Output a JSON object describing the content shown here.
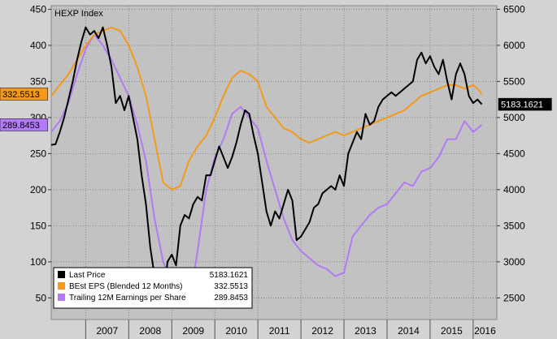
{
  "chart_data": {
    "type": "line",
    "title": "HEXP  Index",
    "x_ticks": [
      "2007",
      "2008",
      "2009",
      "2010",
      "2011",
      "2012",
      "2013",
      "2014",
      "2015",
      "2016"
    ],
    "x_range": [
      2006.2,
      2016.55
    ],
    "y_left": {
      "range": [
        20,
        455
      ],
      "ticks": [
        50,
        100,
        150,
        200,
        250,
        300,
        350,
        400,
        450
      ]
    },
    "y_right": {
      "range": [
        2200,
        6550
      ],
      "ticks": [
        2500,
        3000,
        3500,
        4000,
        4500,
        5000,
        5500,
        6000,
        6500
      ]
    },
    "grid": true,
    "legend_position": "bottom-left",
    "colors": {
      "last_price": "#000000",
      "best_eps": "#f39a1c",
      "trailing_eps": "#b37af5",
      "plot_bg": "#c2c2c2",
      "frame_bg": "#d3d3d3"
    },
    "series": [
      {
        "name": "Last Price",
        "axis": "right",
        "last_label": "5183.1621",
        "legend_value": "5183.1621",
        "x": [
          2006.2,
          2006.3,
          2006.4,
          2006.5,
          2006.6,
          2006.7,
          2006.8,
          2006.9,
          2007.0,
          2007.1,
          2007.2,
          2007.3,
          2007.4,
          2007.5,
          2007.6,
          2007.7,
          2007.8,
          2007.9,
          2008.0,
          2008.1,
          2008.2,
          2008.3,
          2008.4,
          2008.5,
          2008.6,
          2008.7,
          2008.8,
          2008.9,
          2009.0,
          2009.1,
          2009.2,
          2009.3,
          2009.4,
          2009.5,
          2009.6,
          2009.7,
          2009.8,
          2009.9,
          2010.0,
          2010.1,
          2010.2,
          2010.3,
          2010.4,
          2010.5,
          2010.6,
          2010.7,
          2010.8,
          2010.9,
          2011.0,
          2011.1,
          2011.2,
          2011.3,
          2011.4,
          2011.5,
          2011.6,
          2011.7,
          2011.8,
          2011.9,
          2012.0,
          2012.1,
          2012.2,
          2012.3,
          2012.4,
          2012.5,
          2012.6,
          2012.7,
          2012.8,
          2012.9,
          2013.0,
          2013.1,
          2013.2,
          2013.3,
          2013.4,
          2013.5,
          2013.6,
          2013.7,
          2013.8,
          2013.9,
          2014.0,
          2014.1,
          2014.2,
          2014.3,
          2014.4,
          2014.5,
          2014.6,
          2014.7,
          2014.8,
          2014.9,
          2015.0,
          2015.1,
          2015.2,
          2015.3,
          2015.4,
          2015.5,
          2015.6,
          2015.7,
          2015.8,
          2015.9,
          2016.0,
          2016.1,
          2016.2
        ],
        "values": [
          4620,
          4630,
          4800,
          5000,
          5250,
          5500,
          5800,
          6050,
          6250,
          6150,
          6200,
          6100,
          6250,
          6000,
          5700,
          5200,
          5300,
          5100,
          5300,
          5000,
          4700,
          4200,
          3800,
          3200,
          2800,
          2400,
          2450,
          3000,
          3100,
          2950,
          3500,
          3650,
          3600,
          3800,
          3900,
          3850,
          4200,
          4200,
          4400,
          4600,
          4450,
          4300,
          4450,
          4650,
          4900,
          5100,
          5050,
          4750,
          4500,
          4100,
          3700,
          3500,
          3700,
          3600,
          3800,
          4000,
          3850,
          3300,
          3350,
          3450,
          3550,
          3750,
          3800,
          3950,
          4000,
          4050,
          4000,
          4200,
          4050,
          4500,
          4650,
          4800,
          4700,
          5050,
          4900,
          4950,
          5150,
          5250,
          5300,
          5350,
          5300,
          5350,
          5400,
          5450,
          5500,
          5800,
          5900,
          5750,
          5850,
          5700,
          5600,
          5800,
          5500,
          5250,
          5600,
          5750,
          5600,
          5300,
          5200,
          5250,
          5183
        ]
      },
      {
        "name": "BEst EPS (Blended 12 Months)",
        "axis": "left",
        "last_label": "332.5513",
        "legend_value": "332.5513",
        "x": [
          2006.2,
          2006.4,
          2006.6,
          2006.8,
          2007.0,
          2007.2,
          2007.4,
          2007.6,
          2007.8,
          2008.0,
          2008.2,
          2008.4,
          2008.6,
          2008.8,
          2009.0,
          2009.2,
          2009.4,
          2009.6,
          2009.8,
          2010.0,
          2010.2,
          2010.4,
          2010.6,
          2010.8,
          2011.0,
          2011.2,
          2011.4,
          2011.6,
          2011.8,
          2012.0,
          2012.2,
          2012.4,
          2012.6,
          2012.8,
          2013.0,
          2013.2,
          2013.4,
          2013.6,
          2013.8,
          2014.0,
          2014.2,
          2014.4,
          2014.6,
          2014.8,
          2015.0,
          2015.2,
          2015.4,
          2015.6,
          2015.8,
          2016.0,
          2016.1,
          2016.2
        ],
        "values": [
          330,
          345,
          360,
          380,
          400,
          415,
          420,
          425,
          420,
          400,
          370,
          330,
          270,
          210,
          200,
          205,
          240,
          260,
          275,
          300,
          330,
          355,
          365,
          360,
          350,
          315,
          300,
          285,
          280,
          270,
          265,
          270,
          275,
          280,
          275,
          280,
          285,
          290,
          295,
          300,
          305,
          310,
          320,
          330,
          335,
          340,
          345,
          345,
          340,
          345,
          340,
          332.5513
        ]
      },
      {
        "name": "Trailing 12M Earnings per Share",
        "axis": "left",
        "last_label": "289.8453",
        "legend_value": "289.8453",
        "x": [
          2006.2,
          2006.4,
          2006.6,
          2006.8,
          2007.0,
          2007.2,
          2007.4,
          2007.6,
          2007.8,
          2008.0,
          2008.2,
          2008.4,
          2008.5,
          2008.6,
          2008.8,
          2009.0,
          2009.2,
          2009.4,
          2009.6,
          2009.8,
          2010.0,
          2010.2,
          2010.4,
          2010.6,
          2010.8,
          2011.0,
          2011.2,
          2011.4,
          2011.6,
          2011.8,
          2012.0,
          2012.2,
          2012.4,
          2012.6,
          2012.8,
          2013.0,
          2013.2,
          2013.4,
          2013.6,
          2013.8,
          2014.0,
          2014.2,
          2014.4,
          2014.6,
          2014.8,
          2015.0,
          2015.2,
          2015.4,
          2015.6,
          2015.8,
          2016.0,
          2016.2
        ],
        "values": [
          280,
          295,
          320,
          360,
          395,
          415,
          400,
          380,
          355,
          330,
          290,
          240,
          200,
          160,
          100,
          70,
          45,
          42,
          115,
          200,
          245,
          270,
          305,
          315,
          300,
          285,
          240,
          200,
          160,
          130,
          115,
          105,
          95,
          90,
          80,
          85,
          135,
          150,
          165,
          175,
          180,
          195,
          210,
          205,
          225,
          230,
          245,
          270,
          270,
          295,
          280,
          289.8453
        ]
      }
    ]
  }
}
